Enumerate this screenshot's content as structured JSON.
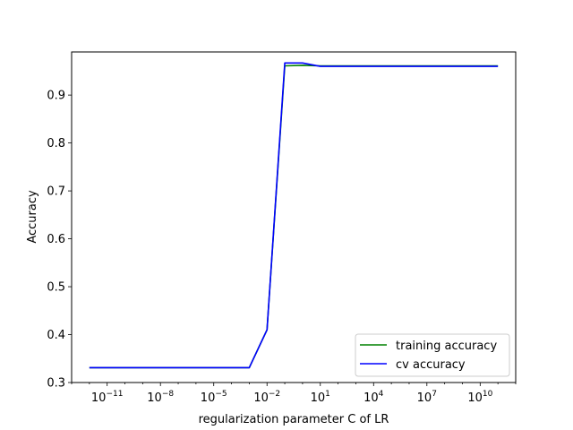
{
  "chart_data": {
    "type": "line",
    "xscale": "log",
    "title": "",
    "xlabel": "regularization parameter C of LR",
    "ylabel": "Accuracy",
    "xlim": [
      1e-13,
      1000000000000.0
    ],
    "ylim": [
      0.3,
      0.99
    ],
    "xticks": [
      {
        "value": 1e-11,
        "base": "10",
        "exp": "−11"
      },
      {
        "value": 1e-08,
        "base": "10",
        "exp": "−8"
      },
      {
        "value": 1e-05,
        "base": "10",
        "exp": "−5"
      },
      {
        "value": 0.01,
        "base": "10",
        "exp": "−2"
      },
      {
        "value": 10,
        "base": "10",
        "exp": "1"
      },
      {
        "value": 10000.0,
        "base": "10",
        "exp": "4"
      },
      {
        "value": 10000000.0,
        "base": "10",
        "exp": "7"
      },
      {
        "value": 10000000000.0,
        "base": "10",
        "exp": "10"
      }
    ],
    "yticks": [
      0.3,
      0.4,
      0.5,
      0.6,
      0.7,
      0.8,
      0.9
    ],
    "ytick_labels": [
      "0.3",
      "0.4",
      "0.5",
      "0.6",
      "0.7",
      "0.8",
      "0.9"
    ],
    "x": [
      1e-12,
      1e-11,
      1e-10,
      1e-09,
      1e-08,
      1e-07,
      1e-06,
      1e-05,
      0.0001,
      0.001,
      0.01,
      0.1,
      1,
      10,
      100,
      1000.0,
      10000.0,
      100000.0,
      1000000.0,
      10000000.0,
      100000000.0,
      1000000000.0,
      10000000000.0,
      100000000000.0
    ],
    "series": [
      {
        "name": "training accuracy",
        "color": "#008000",
        "values": [
          0.331,
          0.331,
          0.331,
          0.331,
          0.331,
          0.331,
          0.331,
          0.331,
          0.331,
          0.331,
          0.41,
          0.961,
          0.962,
          0.961,
          0.961,
          0.961,
          0.961,
          0.961,
          0.961,
          0.961,
          0.961,
          0.961,
          0.961,
          0.961
        ]
      },
      {
        "name": "cv accuracy",
        "color": "#0000ff",
        "values": [
          0.331,
          0.331,
          0.331,
          0.331,
          0.331,
          0.331,
          0.331,
          0.331,
          0.331,
          0.331,
          0.41,
          0.967,
          0.967,
          0.96,
          0.96,
          0.96,
          0.96,
          0.96,
          0.96,
          0.96,
          0.96,
          0.96,
          0.96,
          0.96
        ]
      }
    ],
    "legend": {
      "location": "lower right",
      "entries": [
        "training accuracy",
        "cv accuracy"
      ]
    },
    "grid": false
  }
}
